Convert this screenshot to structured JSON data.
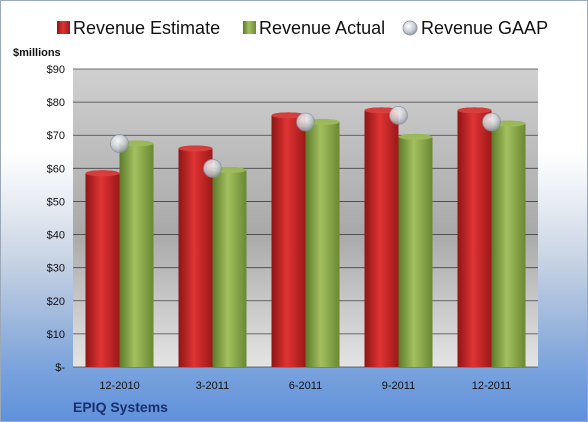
{
  "chart_data": {
    "type": "bar",
    "unit_label": "$millions",
    "company": "EPIQ Systems",
    "categories": [
      "12-2010",
      "3-2011",
      "6-2011",
      "9-2011",
      "12-2011"
    ],
    "series": [
      {
        "name": "Revenue Estimate",
        "kind": "bar",
        "color": "#d42a2a",
        "values": [
          58.5,
          66.0,
          76.0,
          77.5,
          77.5
        ]
      },
      {
        "name": "Revenue Actual",
        "kind": "bar",
        "color": "#8fae4e",
        "values": [
          67.5,
          59.5,
          74.0,
          69.5,
          73.5
        ]
      },
      {
        "name": "Revenue GAAP",
        "kind": "marker",
        "color": "#c9ced6",
        "values": [
          67.5,
          60.0,
          74.0,
          76.0,
          74.0
        ]
      }
    ],
    "y_ticks": [
      "$-",
      "$10",
      "$20",
      "$30",
      "$40",
      "$50",
      "$60",
      "$70",
      "$80",
      "$90"
    ],
    "ylim": [
      0,
      90
    ],
    "grid": true,
    "legend_position": "top"
  }
}
